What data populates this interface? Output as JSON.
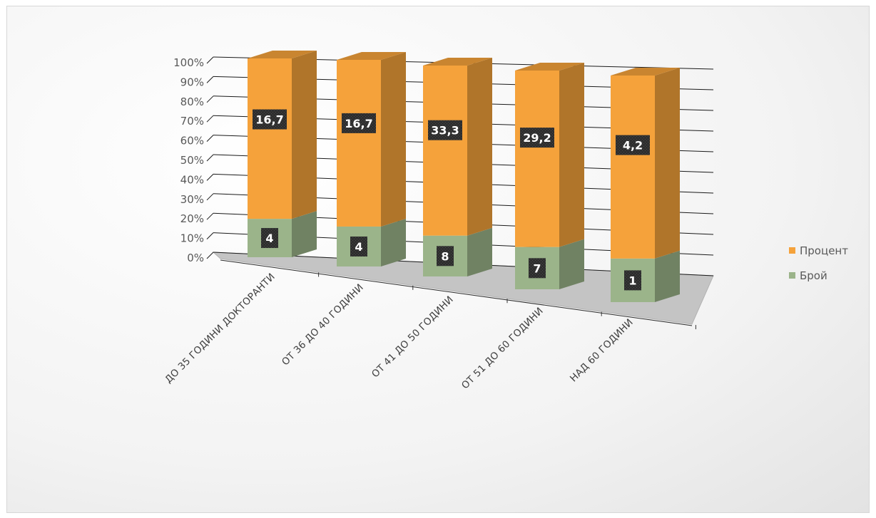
{
  "chart_data": {
    "type": "bar",
    "stacked": "percent",
    "three_d": true,
    "categories": [
      "ДО 35 ГОДИНИ ДОКТОРАНТИ",
      "ОТ 36 ДО 40 ГОДИНИ",
      "ОТ 41 ДО 50 ГОДИНИ",
      "ОТ 51 ДО 60 ГОДИНИ",
      "НАД 60 ГОДИНИ"
    ],
    "series": [
      {
        "name": "Брой",
        "values": [
          4,
          4,
          8,
          7,
          1
        ],
        "labels": [
          "4",
          "4",
          "8",
          "7",
          "1"
        ],
        "color": "#9bb48a"
      },
      {
        "name": "Процент",
        "values": [
          16.7,
          16.7,
          33.3,
          29.2,
          4.2
        ],
        "labels": [
          "16,7",
          "16,7",
          "33,3",
          "29,2",
          "4,2"
        ],
        "color": "#f5a23b"
      }
    ],
    "yticks": [
      "0%",
      "10%",
      "20%",
      "30%",
      "40%",
      "50%",
      "60%",
      "70%",
      "80%",
      "90%",
      "100%"
    ],
    "ylim": [
      0,
      100
    ],
    "grid": true,
    "legend": "right",
    "legend_order": [
      "Процент",
      "Брой"
    ]
  }
}
